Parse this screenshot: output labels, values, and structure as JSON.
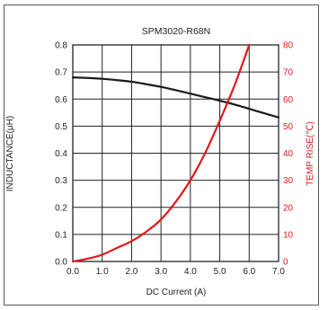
{
  "chart_data": {
    "type": "line",
    "title": "SPM3020-R68N",
    "xlabel": "DC Current (A)",
    "ylabel_left": "INDUCTANCE(μH)",
    "ylabel_right": "TEMP RISE(℃)",
    "xlim": [
      0,
      7
    ],
    "ylim_left": [
      0,
      0.8
    ],
    "ylim_right": [
      0,
      80
    ],
    "x_ticks": [
      "0.0",
      "1.0",
      "2.0",
      "3.0",
      "4.0",
      "5.0",
      "6.0",
      "7.0"
    ],
    "y_left_ticks": [
      "0.0",
      "0.1",
      "0.2",
      "0.3",
      "0.4",
      "0.5",
      "0.6",
      "0.7",
      "0.8"
    ],
    "y_right_ticks": [
      "0",
      "10",
      "20",
      "30",
      "40",
      "50",
      "60",
      "70",
      "80"
    ],
    "grid": true,
    "series": [
      {
        "axis": "left",
        "color": "#1a1a1a",
        "points": [
          [
            0,
            0.68
          ],
          [
            0.5,
            0.678
          ],
          [
            1,
            0.675
          ],
          [
            1.5,
            0.67
          ],
          [
            2,
            0.664
          ],
          [
            2.5,
            0.655
          ],
          [
            3,
            0.645
          ],
          [
            3.5,
            0.633
          ],
          [
            4,
            0.62
          ],
          [
            4.5,
            0.607
          ],
          [
            5,
            0.594
          ],
          [
            5.5,
            0.58
          ],
          [
            6,
            0.564
          ],
          [
            6.5,
            0.548
          ],
          [
            7,
            0.532
          ]
        ]
      },
      {
        "axis": "right",
        "color": "#e0191c",
        "points": [
          [
            0,
            0
          ],
          [
            0.5,
            1
          ],
          [
            1,
            2.5
          ],
          [
            1.5,
            5
          ],
          [
            2,
            7.5
          ],
          [
            2.5,
            11
          ],
          [
            3,
            15.5
          ],
          [
            3.5,
            22
          ],
          [
            4,
            30
          ],
          [
            4.5,
            40
          ],
          [
            5,
            52
          ],
          [
            5.5,
            65
          ],
          [
            6,
            80
          ]
        ]
      }
    ]
  },
  "colors": {
    "axis_left": "#222222",
    "axis_right": "#e0191c",
    "grid": "#222222",
    "frame": "#555555"
  }
}
